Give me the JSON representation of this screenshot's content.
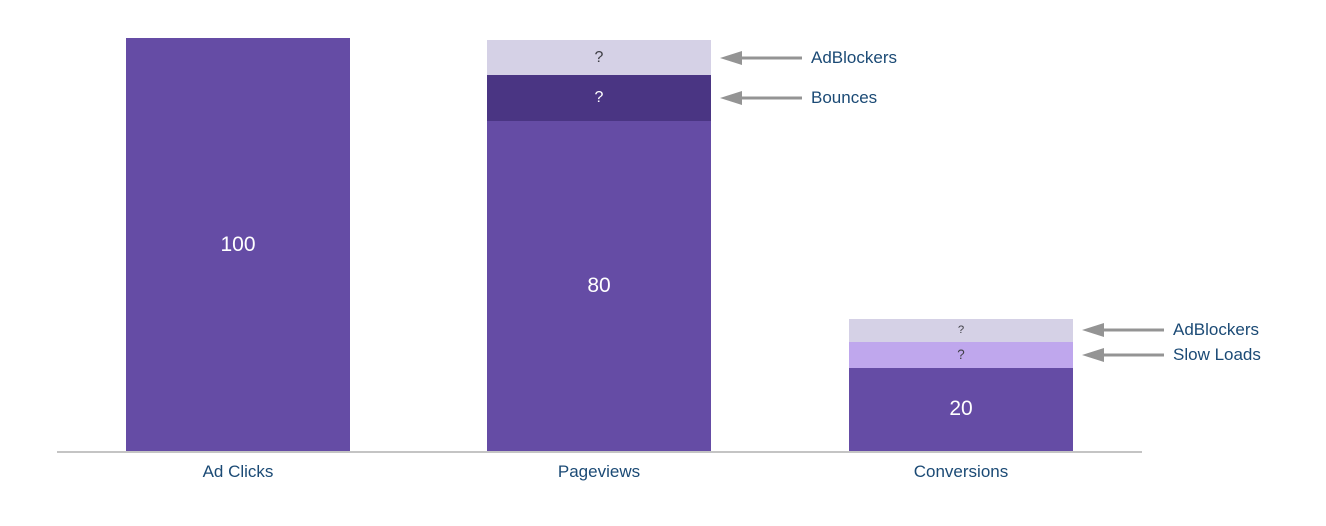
{
  "chart_data": {
    "type": "bar",
    "subtype": "stacked_funnel",
    "title": "",
    "xlabel": "",
    "ylabel": "",
    "categories": [
      "Ad Clicks",
      "Pageviews",
      "Conversions"
    ],
    "ylim": [
      0,
      100
    ],
    "grid": false,
    "legend": false,
    "annotations_side": "right",
    "colors": {
      "main_purple": "#654CA5",
      "dark_purple": "#4A3583",
      "lavender": "#D5D1E6",
      "light_purple": "#BFA7ED",
      "category_label": "#1B4A75",
      "annotation_label": "#1B4A75",
      "arrow_gray": "#949494",
      "axis_gray": "#C4C4C4",
      "white_text": "#FFFFFF",
      "dark_text": "#3F3F46"
    },
    "bars": [
      {
        "category": "Ad Clicks",
        "segments": [
          {
            "name": "ad-clicks-value",
            "value": 100,
            "estimated_value": 100,
            "display": "100",
            "color": "#654CA5",
            "text_color": "#FFFFFF",
            "annotation": null
          }
        ]
      },
      {
        "category": "Pageviews",
        "segments": [
          {
            "name": "pageviews-value",
            "value": 80,
            "estimated_value": 80,
            "display": "80",
            "color": "#654CA5",
            "text_color": "#FFFFFF",
            "annotation": null
          },
          {
            "name": "pageviews-bounces",
            "value": null,
            "estimated_value": 11,
            "display": "?",
            "color": "#4A3583",
            "text_color": "#FFFFFF",
            "annotation": "Bounces"
          },
          {
            "name": "pageviews-adblockers",
            "value": null,
            "estimated_value": 8.5,
            "display": "?",
            "color": "#D5D1E6",
            "text_color": "#3F3F46",
            "annotation": "AdBlockers"
          }
        ]
      },
      {
        "category": "Conversions",
        "segments": [
          {
            "name": "conversions-value",
            "value": 20,
            "estimated_value": 20,
            "display": "20",
            "color": "#654CA5",
            "text_color": "#FFFFFF",
            "annotation": null
          },
          {
            "name": "conversions-slow-loads",
            "value": null,
            "estimated_value": 6.5,
            "display": "?",
            "color": "#BFA7ED",
            "text_color": "#3F3F46",
            "annotation": "Slow Loads"
          },
          {
            "name": "conversions-adblockers",
            "value": null,
            "estimated_value": 5.5,
            "display": "?",
            "color": "#D5D1E6",
            "text_color": "#3F3F46",
            "annotation": "AdBlockers"
          }
        ]
      }
    ]
  }
}
